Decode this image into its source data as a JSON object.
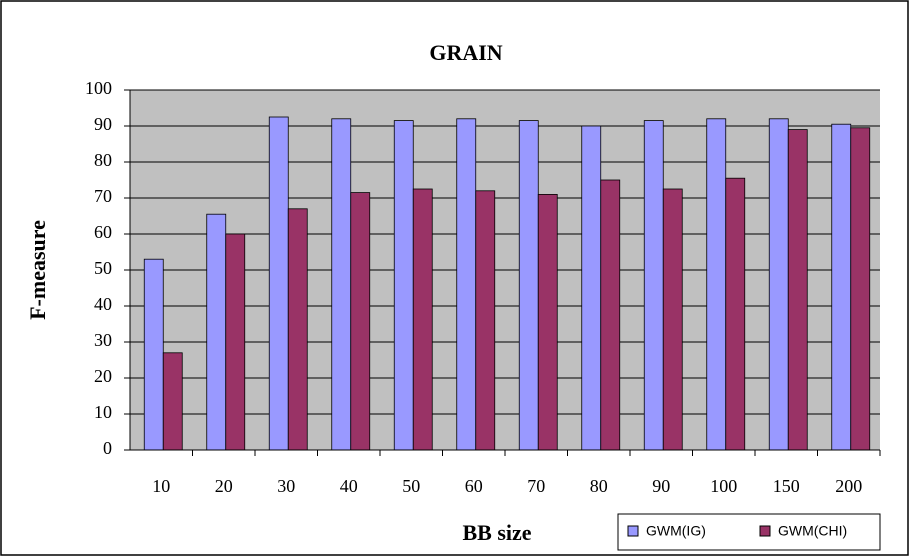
{
  "chart_data": {
    "type": "bar",
    "title": "GRAIN",
    "x_label": "BB size",
    "y_label": "F-measure",
    "categories": [
      "10",
      "20",
      "30",
      "40",
      "50",
      "60",
      "70",
      "80",
      "90",
      "100",
      "150",
      "200"
    ],
    "series": [
      {
        "name": "GWM(IG)",
        "color": "#9999ff",
        "values": [
          53,
          65.5,
          92.5,
          92,
          91.5,
          92,
          91.5,
          90,
          91.5,
          92,
          92,
          90.5
        ]
      },
      {
        "name": "GWM(CHI)",
        "color": "#993366",
        "values": [
          27,
          60,
          67,
          71.5,
          72.5,
          72,
          71,
          75,
          72.5,
          75.5,
          89,
          89.5
        ]
      }
    ],
    "ylim": [
      0,
      100
    ],
    "yticks": [
      0,
      10,
      20,
      30,
      40,
      50,
      60,
      70,
      80,
      90,
      100
    ],
    "grid": true,
    "plot_background": "#c0c0c0",
    "legend": "bottom-right"
  }
}
